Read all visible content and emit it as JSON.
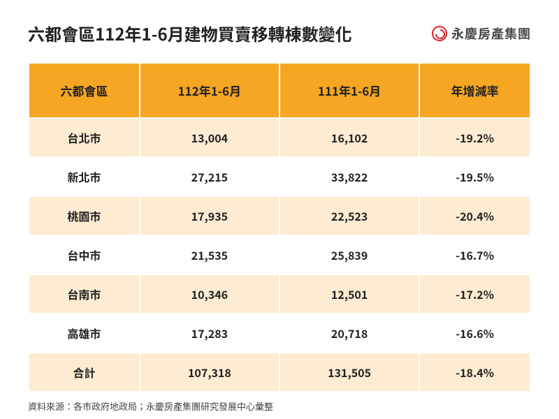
{
  "title": "六都會區112年1-6月建物買賣移轉棟數變化",
  "logo": {
    "brand": "永慶房產集團"
  },
  "table": {
    "type": "table",
    "header_bg": "#f5a623",
    "row_odd_bg": "#fdecd2",
    "row_even_bg": "#ffffff",
    "text_color": "#222222",
    "border_color": "#ffffff",
    "header_fontsize": 17,
    "cell_fontsize": 16,
    "columns": [
      "六都會區",
      "112年1-6月",
      "111年1-6月",
      "年增減率"
    ],
    "rows": [
      [
        "台北市",
        "13,004",
        "16,102",
        "-19.2%"
      ],
      [
        "新北市",
        "27,215",
        "33,822",
        "-19.5%"
      ],
      [
        "桃園市",
        "17,935",
        "22,523",
        "-20.4%"
      ],
      [
        "台中市",
        "21,535",
        "25,839",
        "-16.7%"
      ],
      [
        "台南市",
        "10,346",
        "12,501",
        "-17.2%"
      ],
      [
        "高雄市",
        "17,283",
        "20,718",
        "-16.6%"
      ],
      [
        "合計",
        "107,318",
        "131,505",
        "-18.4%"
      ]
    ]
  },
  "footnote": "資料來源：各市政府地政局；永慶房產集團研究發展中心彙整"
}
